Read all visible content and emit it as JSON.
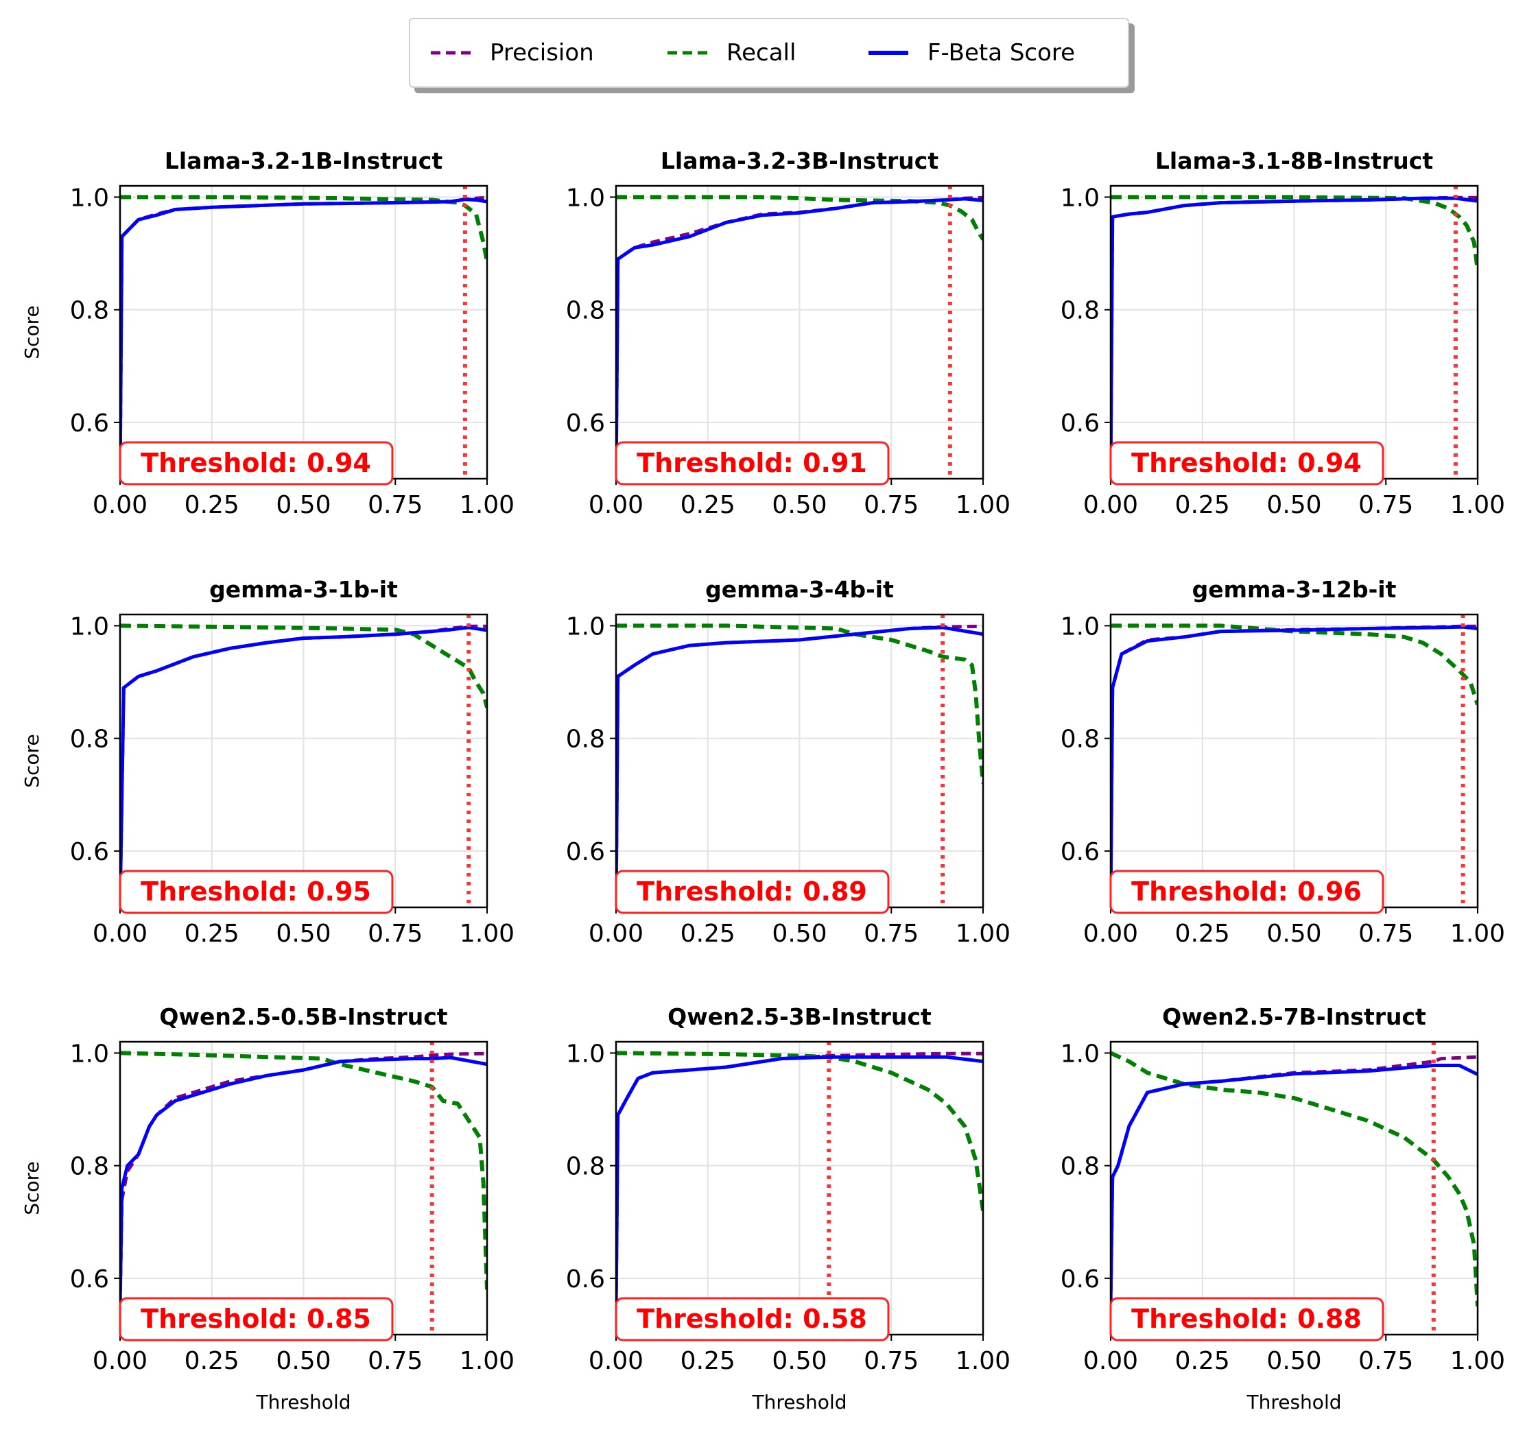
{
  "legend": {
    "items": [
      {
        "label": "Precision",
        "color": "#800080",
        "style": "dashed"
      },
      {
        "label": "Recall",
        "color": "#008000",
        "style": "dashed"
      },
      {
        "label": "F-Beta Score",
        "color": "#0000ff",
        "style": "solid"
      }
    ],
    "placement": "top-center"
  },
  "axes": {
    "xlabel": "Threshold",
    "ylabel": "Score"
  },
  "chart_data": [
    {
      "type": "line",
      "title": "Llama-3.2-1B-Instruct",
      "threshold_label": "Threshold: 0.94",
      "threshold": 0.94,
      "xlim": [
        0,
        1
      ],
      "ylim": [
        0.5,
        1.02
      ],
      "xticks": [
        "0.00",
        "0.25",
        "0.50",
        "0.75",
        "1.00"
      ],
      "yticks": [
        "0.6",
        "0.8",
        "1.0"
      ],
      "grid": true,
      "series": [
        {
          "name": "Precision",
          "x": [
            0.0,
            0.005,
            0.02,
            0.05,
            0.1,
            0.15,
            0.25,
            0.5,
            0.75,
            0.9,
            0.94,
            0.97,
            1.0
          ],
          "y": [
            0.5,
            0.93,
            0.94,
            0.96,
            0.97,
            0.978,
            0.982,
            0.988,
            0.99,
            0.992,
            0.996,
            0.998,
            0.999
          ]
        },
        {
          "name": "Recall",
          "x": [
            0.0,
            0.3,
            0.6,
            0.85,
            0.92,
            0.94,
            0.97,
            0.99,
            1.0
          ],
          "y": [
            1.0,
            1.0,
            0.998,
            0.995,
            0.99,
            0.985,
            0.97,
            0.92,
            0.885
          ]
        },
        {
          "name": "F-Beta Score",
          "x": [
            0.0,
            0.005,
            0.02,
            0.05,
            0.1,
            0.15,
            0.25,
            0.5,
            0.75,
            0.9,
            0.94,
            0.97,
            1.0
          ],
          "y": [
            0.5,
            0.93,
            0.94,
            0.96,
            0.968,
            0.978,
            0.982,
            0.988,
            0.99,
            0.992,
            0.996,
            0.995,
            0.992
          ]
        }
      ]
    },
    {
      "type": "line",
      "title": "Llama-3.2-3B-Instruct",
      "threshold_label": "Threshold: 0.91",
      "threshold": 0.91,
      "xlim": [
        0,
        1
      ],
      "ylim": [
        0.5,
        1.02
      ],
      "xticks": [
        "0.00",
        "0.25",
        "0.50",
        "0.75",
        "1.00"
      ],
      "yticks": [
        "0.6",
        "0.8",
        "1.0"
      ],
      "grid": true,
      "series": [
        {
          "name": "Precision",
          "x": [
            0.0,
            0.005,
            0.05,
            0.1,
            0.2,
            0.3,
            0.4,
            0.5,
            0.6,
            0.7,
            0.8,
            0.9,
            0.95,
            1.0
          ],
          "y": [
            0.5,
            0.89,
            0.91,
            0.92,
            0.935,
            0.955,
            0.97,
            0.973,
            0.98,
            0.99,
            0.992,
            0.995,
            0.998,
            0.999
          ]
        },
        {
          "name": "Recall",
          "x": [
            0.0,
            0.4,
            0.5,
            0.6,
            0.8,
            0.88,
            0.91,
            0.94,
            0.97,
            0.99,
            1.0
          ],
          "y": [
            1.0,
            1.0,
            0.998,
            0.995,
            0.993,
            0.99,
            0.985,
            0.975,
            0.96,
            0.935,
            0.925
          ]
        },
        {
          "name": "F-Beta Score",
          "x": [
            0.0,
            0.005,
            0.05,
            0.1,
            0.2,
            0.3,
            0.4,
            0.5,
            0.6,
            0.7,
            0.8,
            0.9,
            0.95,
            1.0
          ],
          "y": [
            0.5,
            0.89,
            0.91,
            0.915,
            0.93,
            0.955,
            0.968,
            0.972,
            0.98,
            0.99,
            0.992,
            0.995,
            0.997,
            0.994
          ]
        }
      ]
    },
    {
      "type": "line",
      "title": "Llama-3.1-8B-Instruct",
      "threshold_label": "Threshold: 0.94",
      "threshold": 0.94,
      "xlim": [
        0,
        1
      ],
      "ylim": [
        0.5,
        1.02
      ],
      "xticks": [
        "0.00",
        "0.25",
        "0.50",
        "0.75",
        "1.00"
      ],
      "yticks": [
        "0.6",
        "0.8",
        "1.0"
      ],
      "grid": true,
      "series": [
        {
          "name": "Precision",
          "x": [
            0.0,
            0.005,
            0.05,
            0.1,
            0.2,
            0.3,
            0.5,
            0.7,
            0.85,
            0.94,
            1.0
          ],
          "y": [
            0.5,
            0.965,
            0.97,
            0.973,
            0.985,
            0.99,
            0.993,
            0.995,
            0.998,
            0.999,
            0.999
          ]
        },
        {
          "name": "Recall",
          "x": [
            0.0,
            0.5,
            0.8,
            0.88,
            0.92,
            0.95,
            0.97,
            0.99,
            1.0
          ],
          "y": [
            1.0,
            1.0,
            0.998,
            0.99,
            0.98,
            0.965,
            0.95,
            0.92,
            0.87
          ]
        },
        {
          "name": "F-Beta Score",
          "x": [
            0.0,
            0.005,
            0.05,
            0.1,
            0.2,
            0.3,
            0.5,
            0.7,
            0.85,
            0.94,
            1.0
          ],
          "y": [
            0.5,
            0.965,
            0.97,
            0.973,
            0.985,
            0.99,
            0.993,
            0.995,
            0.998,
            0.998,
            0.993
          ]
        }
      ]
    },
    {
      "type": "line",
      "title": "gemma-3-1b-it",
      "threshold_label": "Threshold: 0.95",
      "threshold": 0.95,
      "xlim": [
        0,
        1
      ],
      "ylim": [
        0.5,
        1.02
      ],
      "xticks": [
        "0.00",
        "0.25",
        "0.50",
        "0.75",
        "1.00"
      ],
      "yticks": [
        "0.6",
        "0.8",
        "1.0"
      ],
      "grid": true,
      "series": [
        {
          "name": "Precision",
          "x": [
            0.0,
            0.01,
            0.05,
            0.1,
            0.2,
            0.3,
            0.4,
            0.5,
            0.6,
            0.75,
            0.85,
            0.9,
            0.95,
            1.0
          ],
          "y": [
            0.5,
            0.89,
            0.91,
            0.92,
            0.945,
            0.96,
            0.97,
            0.978,
            0.98,
            0.985,
            0.99,
            0.995,
            0.999,
            0.999
          ]
        },
        {
          "name": "Recall",
          "x": [
            0.0,
            0.3,
            0.6,
            0.75,
            0.8,
            0.85,
            0.9,
            0.95,
            0.97,
            0.99,
            1.0
          ],
          "y": [
            1.0,
            0.998,
            0.995,
            0.993,
            0.985,
            0.965,
            0.945,
            0.925,
            0.9,
            0.88,
            0.855
          ]
        },
        {
          "name": "F-Beta Score",
          "x": [
            0.0,
            0.01,
            0.05,
            0.1,
            0.2,
            0.3,
            0.4,
            0.5,
            0.6,
            0.75,
            0.85,
            0.9,
            0.95,
            1.0
          ],
          "y": [
            0.5,
            0.89,
            0.91,
            0.92,
            0.945,
            0.96,
            0.97,
            0.978,
            0.98,
            0.985,
            0.99,
            0.993,
            0.997,
            0.992
          ]
        }
      ]
    },
    {
      "type": "line",
      "title": "gemma-3-4b-it",
      "threshold_label": "Threshold: 0.89",
      "threshold": 0.89,
      "xlim": [
        0,
        1
      ],
      "ylim": [
        0.5,
        1.02
      ],
      "xticks": [
        "0.00",
        "0.25",
        "0.50",
        "0.75",
        "1.00"
      ],
      "yticks": [
        "0.6",
        "0.8",
        "1.0"
      ],
      "grid": true,
      "series": [
        {
          "name": "Precision",
          "x": [
            0.0,
            0.005,
            0.05,
            0.1,
            0.2,
            0.3,
            0.5,
            0.65,
            0.8,
            0.89,
            1.0
          ],
          "y": [
            0.5,
            0.91,
            0.93,
            0.95,
            0.965,
            0.97,
            0.975,
            0.985,
            0.995,
            0.998,
            0.999
          ]
        },
        {
          "name": "Recall",
          "x": [
            0.0,
            0.3,
            0.6,
            0.65,
            0.75,
            0.85,
            0.89,
            0.95,
            0.97,
            0.98,
            0.99,
            1.0
          ],
          "y": [
            1.0,
            1.0,
            0.995,
            0.985,
            0.975,
            0.955,
            0.945,
            0.94,
            0.93,
            0.88,
            0.79,
            0.72
          ]
        },
        {
          "name": "F-Beta Score",
          "x": [
            0.0,
            0.005,
            0.05,
            0.1,
            0.2,
            0.3,
            0.5,
            0.65,
            0.8,
            0.89,
            1.0
          ],
          "y": [
            0.5,
            0.91,
            0.93,
            0.95,
            0.965,
            0.97,
            0.975,
            0.985,
            0.995,
            0.997,
            0.985
          ]
        }
      ]
    },
    {
      "type": "line",
      "title": "gemma-3-12b-it",
      "threshold_label": "Threshold: 0.96",
      "threshold": 0.96,
      "xlim": [
        0,
        1
      ],
      "ylim": [
        0.5,
        1.02
      ],
      "xticks": [
        "0.00",
        "0.25",
        "0.50",
        "0.75",
        "1.00"
      ],
      "yticks": [
        "0.6",
        "0.8",
        "1.0"
      ],
      "grid": true,
      "series": [
        {
          "name": "Precision",
          "x": [
            0.0,
            0.005,
            0.03,
            0.1,
            0.2,
            0.3,
            0.5,
            0.7,
            0.9,
            0.96,
            1.0
          ],
          "y": [
            0.5,
            0.89,
            0.95,
            0.975,
            0.98,
            0.99,
            0.993,
            0.995,
            0.998,
            0.999,
            0.999
          ]
        },
        {
          "name": "Recall",
          "x": [
            0.0,
            0.3,
            0.5,
            0.7,
            0.8,
            0.85,
            0.9,
            0.95,
            0.98,
            1.0
          ],
          "y": [
            1.0,
            1.0,
            0.99,
            0.985,
            0.98,
            0.97,
            0.95,
            0.92,
            0.9,
            0.86
          ]
        },
        {
          "name": "F-Beta Score",
          "x": [
            0.0,
            0.005,
            0.03,
            0.1,
            0.2,
            0.3,
            0.5,
            0.7,
            0.9,
            0.96,
            1.0
          ],
          "y": [
            0.5,
            0.89,
            0.95,
            0.973,
            0.98,
            0.99,
            0.992,
            0.995,
            0.997,
            0.998,
            0.995
          ]
        }
      ]
    },
    {
      "type": "line",
      "title": "Qwen2.5-0.5B-Instruct",
      "threshold_label": "Threshold: 0.85",
      "threshold": 0.85,
      "xlim": [
        0,
        1
      ],
      "ylim": [
        0.5,
        1.02
      ],
      "xticks": [
        "0.00",
        "0.25",
        "0.50",
        "0.75",
        "1.00"
      ],
      "yticks": [
        "0.6",
        "0.8",
        "1.0"
      ],
      "grid": true,
      "series": [
        {
          "name": "Precision",
          "x": [
            0.0,
            0.005,
            0.02,
            0.05,
            0.08,
            0.1,
            0.15,
            0.2,
            0.3,
            0.4,
            0.5,
            0.6,
            0.7,
            0.8,
            0.85,
            0.9,
            1.0
          ],
          "y": [
            0.55,
            0.74,
            0.79,
            0.82,
            0.87,
            0.89,
            0.92,
            0.93,
            0.95,
            0.96,
            0.97,
            0.985,
            0.99,
            0.993,
            0.996,
            0.998,
            0.999
          ]
        },
        {
          "name": "Recall",
          "x": [
            0.0,
            0.2,
            0.4,
            0.55,
            0.6,
            0.7,
            0.8,
            0.85,
            0.88,
            0.92,
            0.95,
            0.98,
            0.99,
            1.0
          ],
          "y": [
            1.0,
            0.997,
            0.993,
            0.99,
            0.98,
            0.965,
            0.95,
            0.94,
            0.915,
            0.91,
            0.88,
            0.85,
            0.77,
            0.58
          ]
        },
        {
          "name": "F-Beta Score",
          "x": [
            0.0,
            0.005,
            0.02,
            0.05,
            0.08,
            0.1,
            0.15,
            0.2,
            0.3,
            0.4,
            0.5,
            0.6,
            0.7,
            0.8,
            0.85,
            0.9,
            1.0
          ],
          "y": [
            0.55,
            0.76,
            0.8,
            0.82,
            0.87,
            0.89,
            0.915,
            0.925,
            0.945,
            0.96,
            0.97,
            0.985,
            0.988,
            0.99,
            0.99,
            0.992,
            0.98
          ]
        }
      ]
    },
    {
      "type": "line",
      "title": "Qwen2.5-3B-Instruct",
      "threshold_label": "Threshold: 0.58",
      "threshold": 0.58,
      "xlim": [
        0,
        1
      ],
      "ylim": [
        0.5,
        1.02
      ],
      "xticks": [
        "0.00",
        "0.25",
        "0.50",
        "0.75",
        "1.00"
      ],
      "yticks": [
        "0.6",
        "0.8",
        "1.0"
      ],
      "grid": true,
      "series": [
        {
          "name": "Precision",
          "x": [
            0.0,
            0.005,
            0.03,
            0.06,
            0.1,
            0.2,
            0.3,
            0.45,
            0.58,
            0.7,
            0.9,
            1.0
          ],
          "y": [
            0.55,
            0.89,
            0.92,
            0.955,
            0.965,
            0.97,
            0.975,
            0.99,
            0.995,
            0.997,
            0.999,
            0.999
          ]
        },
        {
          "name": "Recall",
          "x": [
            0.0,
            0.3,
            0.5,
            0.58,
            0.65,
            0.75,
            0.85,
            0.9,
            0.95,
            0.98,
            1.0
          ],
          "y": [
            1.0,
            0.998,
            0.995,
            0.993,
            0.985,
            0.965,
            0.935,
            0.91,
            0.87,
            0.81,
            0.72
          ]
        },
        {
          "name": "F-Beta Score",
          "x": [
            0.0,
            0.005,
            0.03,
            0.06,
            0.1,
            0.2,
            0.3,
            0.45,
            0.58,
            0.7,
            0.9,
            1.0
          ],
          "y": [
            0.55,
            0.89,
            0.92,
            0.955,
            0.965,
            0.97,
            0.975,
            0.99,
            0.993,
            0.993,
            0.993,
            0.985
          ]
        }
      ]
    },
    {
      "type": "line",
      "title": "Qwen2.5-7B-Instruct",
      "threshold_label": "Threshold: 0.88",
      "threshold": 0.88,
      "xlim": [
        0,
        1
      ],
      "ylim": [
        0.5,
        1.02
      ],
      "xticks": [
        "0.00",
        "0.25",
        "0.50",
        "0.75",
        "1.00"
      ],
      "yticks": [
        "0.6",
        "0.8",
        "1.0"
      ],
      "grid": true,
      "series": [
        {
          "name": "Precision",
          "x": [
            0.0,
            0.005,
            0.02,
            0.05,
            0.1,
            0.2,
            0.3,
            0.5,
            0.7,
            0.88,
            0.9,
            1.0
          ],
          "y": [
            0.55,
            0.78,
            0.8,
            0.87,
            0.93,
            0.945,
            0.95,
            0.965,
            0.97,
            0.985,
            0.99,
            0.993
          ]
        },
        {
          "name": "Recall",
          "x": [
            0.0,
            0.05,
            0.1,
            0.2,
            0.3,
            0.4,
            0.5,
            0.6,
            0.7,
            0.8,
            0.88,
            0.92,
            0.95,
            0.97,
            0.99,
            1.0
          ],
          "y": [
            1.0,
            0.985,
            0.965,
            0.945,
            0.935,
            0.93,
            0.92,
            0.9,
            0.88,
            0.85,
            0.81,
            0.78,
            0.75,
            0.72,
            0.66,
            0.55
          ]
        },
        {
          "name": "F-Beta Score",
          "x": [
            0.0,
            0.005,
            0.02,
            0.05,
            0.1,
            0.2,
            0.3,
            0.5,
            0.7,
            0.88,
            0.95,
            1.0
          ],
          "y": [
            0.55,
            0.78,
            0.8,
            0.87,
            0.93,
            0.945,
            0.95,
            0.963,
            0.968,
            0.978,
            0.978,
            0.962
          ]
        }
      ]
    }
  ]
}
